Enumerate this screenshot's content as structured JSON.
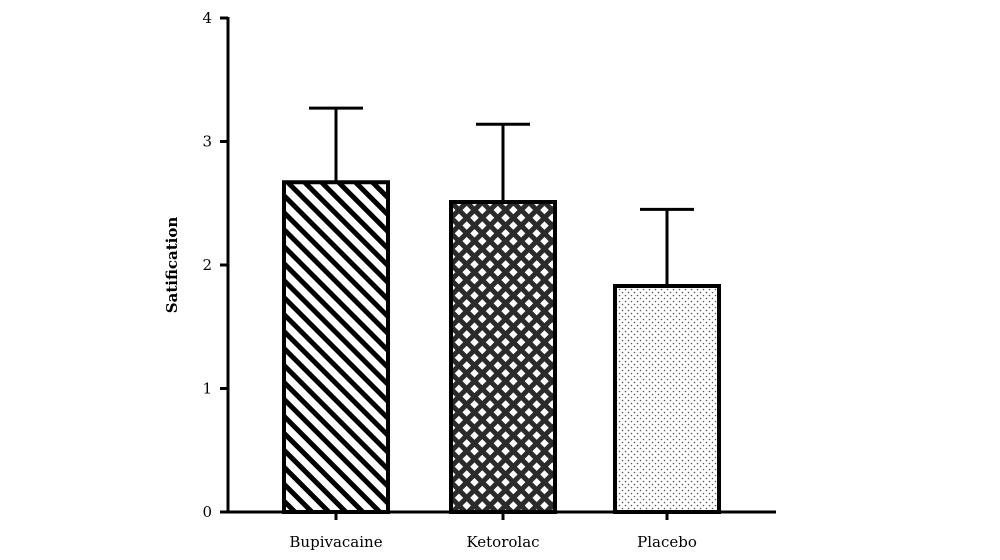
{
  "chart_data": {
    "type": "bar",
    "title": "",
    "xlabel": "",
    "ylabel": "Satification",
    "ylim": [
      0,
      4
    ],
    "yticks": [
      0,
      1,
      2,
      3,
      4
    ],
    "grid": false,
    "categories": [
      "Bupivacaine",
      "Ketorolac",
      "Placebo"
    ],
    "values": [
      2.67,
      2.51,
      1.83
    ],
    "error_upper": [
      0.6,
      0.63,
      0.62
    ],
    "bar_patterns": [
      "diagonal-hatch",
      "crosshatch",
      "dotted"
    ],
    "colors": {
      "axis": "#000000",
      "bar_outline": "#000000",
      "hatch": "#000000",
      "crosshatch_fill": "#2b2b2b",
      "dots": "#555555",
      "background": "#ffffff"
    }
  }
}
